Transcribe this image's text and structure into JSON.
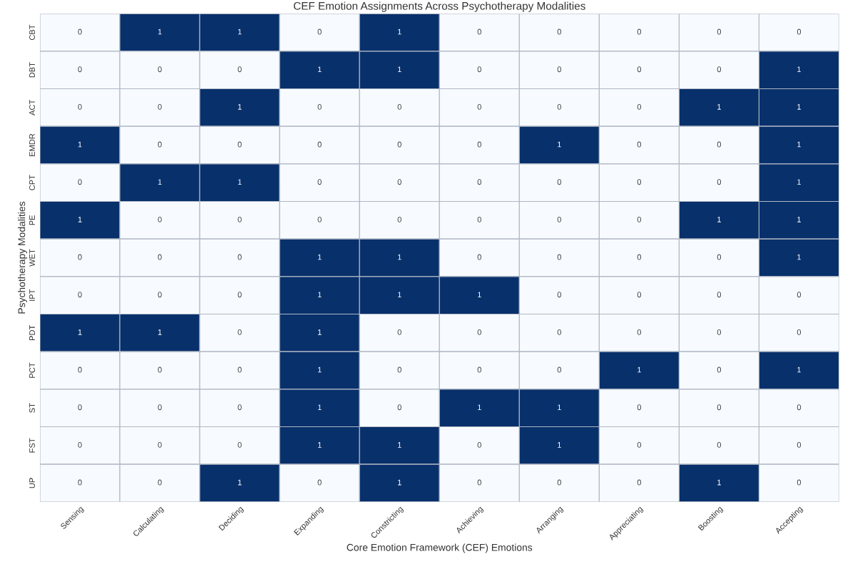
{
  "chart_data": {
    "type": "heatmap",
    "title": "CEF Emotion Assignments Across Psychotherapy Modalities",
    "xlabel": "Core Emotion Framework (CEF) Emotions",
    "ylabel": "Psychotherapy Modalities",
    "categories": [
      "Sensing",
      "Calculating",
      "Deciding",
      "Expanding",
      "Constricting",
      "Achieving",
      "Arranging",
      "Appreciating",
      "Boosting",
      "Accepting"
    ],
    "y_categories": [
      "CBT",
      "DBT",
      "ACT",
      "EMDR",
      "CPT",
      "PE",
      "WET",
      "IPT",
      "PDT",
      "PCT",
      "ST",
      "FST",
      "UP"
    ],
    "cells": [
      [
        0,
        1,
        1,
        0,
        1,
        0,
        0,
        0,
        0,
        0
      ],
      [
        0,
        0,
        0,
        1,
        1,
        0,
        0,
        0,
        0,
        1
      ],
      [
        0,
        0,
        1,
        0,
        0,
        0,
        0,
        0,
        1,
        1
      ],
      [
        1,
        0,
        0,
        0,
        0,
        0,
        1,
        0,
        0,
        1
      ],
      [
        0,
        1,
        1,
        0,
        0,
        0,
        0,
        0,
        0,
        1
      ],
      [
        1,
        0,
        0,
        0,
        0,
        0,
        0,
        0,
        1,
        1
      ],
      [
        0,
        0,
        0,
        1,
        1,
        0,
        0,
        0,
        0,
        1
      ],
      [
        0,
        0,
        0,
        1,
        1,
        1,
        0,
        0,
        0,
        0
      ],
      [
        1,
        1,
        0,
        1,
        0,
        0,
        0,
        0,
        0,
        0
      ],
      [
        0,
        0,
        0,
        1,
        0,
        0,
        0,
        1,
        0,
        1
      ],
      [
        0,
        0,
        0,
        1,
        0,
        1,
        1,
        0,
        0,
        0
      ],
      [
        0,
        0,
        0,
        1,
        1,
        0,
        1,
        0,
        0,
        0
      ],
      [
        0,
        0,
        1,
        0,
        1,
        0,
        0,
        0,
        1,
        0
      ]
    ],
    "colors": [
      "#f7fbff",
      "#08306b"
    ],
    "data_labels": true
  }
}
